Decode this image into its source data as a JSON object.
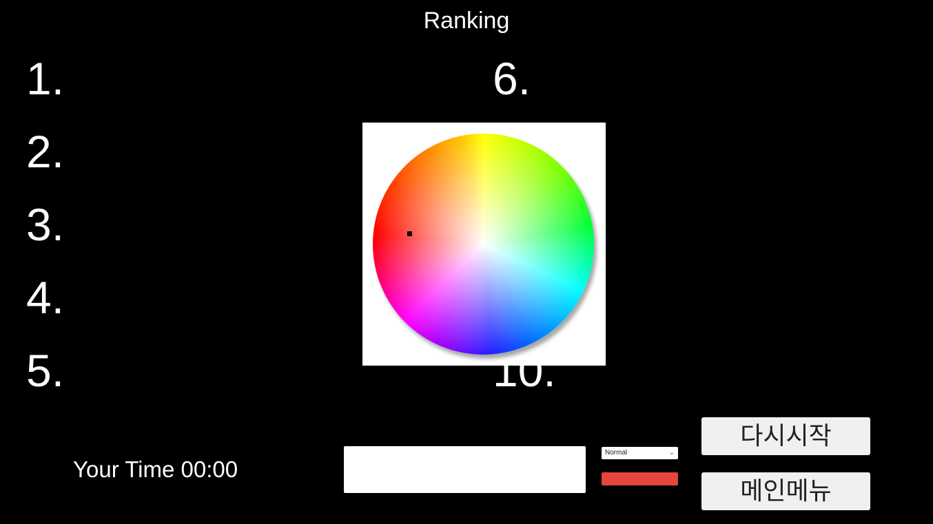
{
  "title": "Ranking",
  "ranks": {
    "r1": "1.",
    "r2": "2.",
    "r3": "3.",
    "r4": "4.",
    "r5": "5.",
    "r6": "6.",
    "r10": "10."
  },
  "your_time": "Your Time 00:00",
  "name_input": {
    "value": ""
  },
  "mode_select": {
    "selected": "Normal"
  },
  "selected_color": "#e8453c",
  "buttons": {
    "restart": "다시시작",
    "main_menu": "메인메뉴"
  }
}
